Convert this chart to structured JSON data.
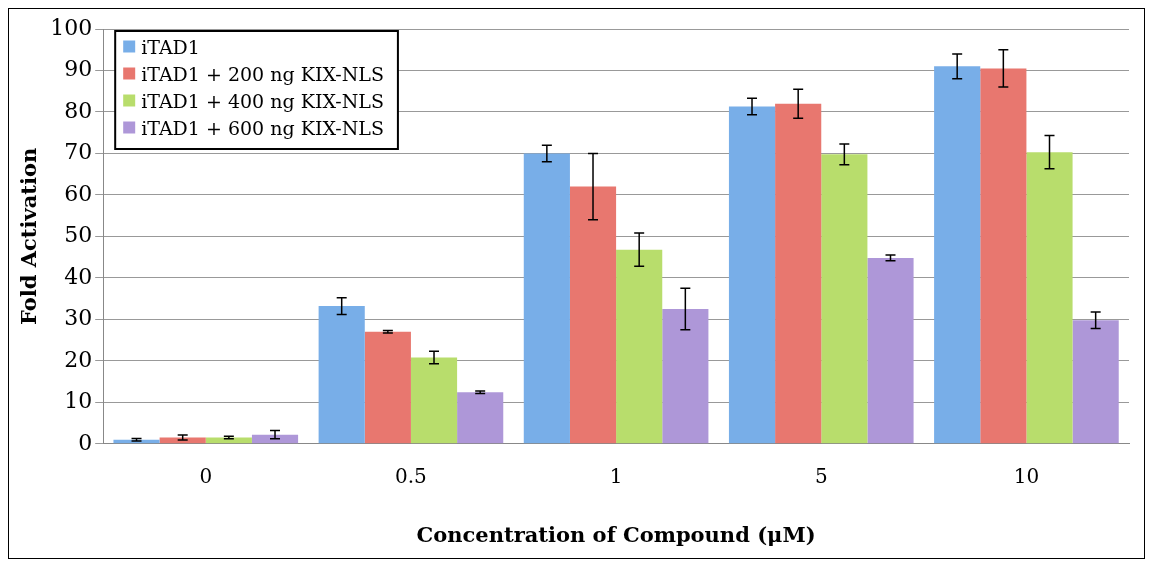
{
  "chart_data": {
    "type": "bar",
    "xlabel": "Concentration of Compound (μM)",
    "ylabel": "Fold Activation",
    "categories": [
      "0",
      "0.5",
      "1",
      "5",
      "10"
    ],
    "series": [
      {
        "name": "iTAD1",
        "color": "#78aee8",
        "values": [
          1,
          33.2,
          70,
          81.3,
          91
        ],
        "errors": [
          0.3,
          2,
          2,
          2,
          3
        ]
      },
      {
        "name": "iTAD1 + 200 ng KIX-NLS",
        "color": "#e8776f",
        "values": [
          1.5,
          27,
          62,
          82,
          90.5
        ],
        "errors": [
          0.6,
          0.3,
          8,
          3.5,
          4.5
        ]
      },
      {
        "name": "iTAD1 + 400 ng KIX-NLS",
        "color": "#b8dd6c",
        "values": [
          1.5,
          20.8,
          46.8,
          69.8,
          70.3
        ],
        "errors": [
          0.3,
          1.5,
          4,
          2.5,
          4
        ]
      },
      {
        "name": "iTAD1 + 600 ng KIX-NLS",
        "color": "#ae97d8",
        "values": [
          2.2,
          12.4,
          32.5,
          44.8,
          29.8
        ],
        "errors": [
          1,
          0.3,
          5,
          0.7,
          2
        ]
      }
    ],
    "ylim": [
      0,
      100
    ],
    "yticks": [
      0,
      10,
      20,
      30,
      40,
      50,
      60,
      70,
      80,
      90,
      100
    ],
    "grid": "y",
    "legend": "top left"
  }
}
